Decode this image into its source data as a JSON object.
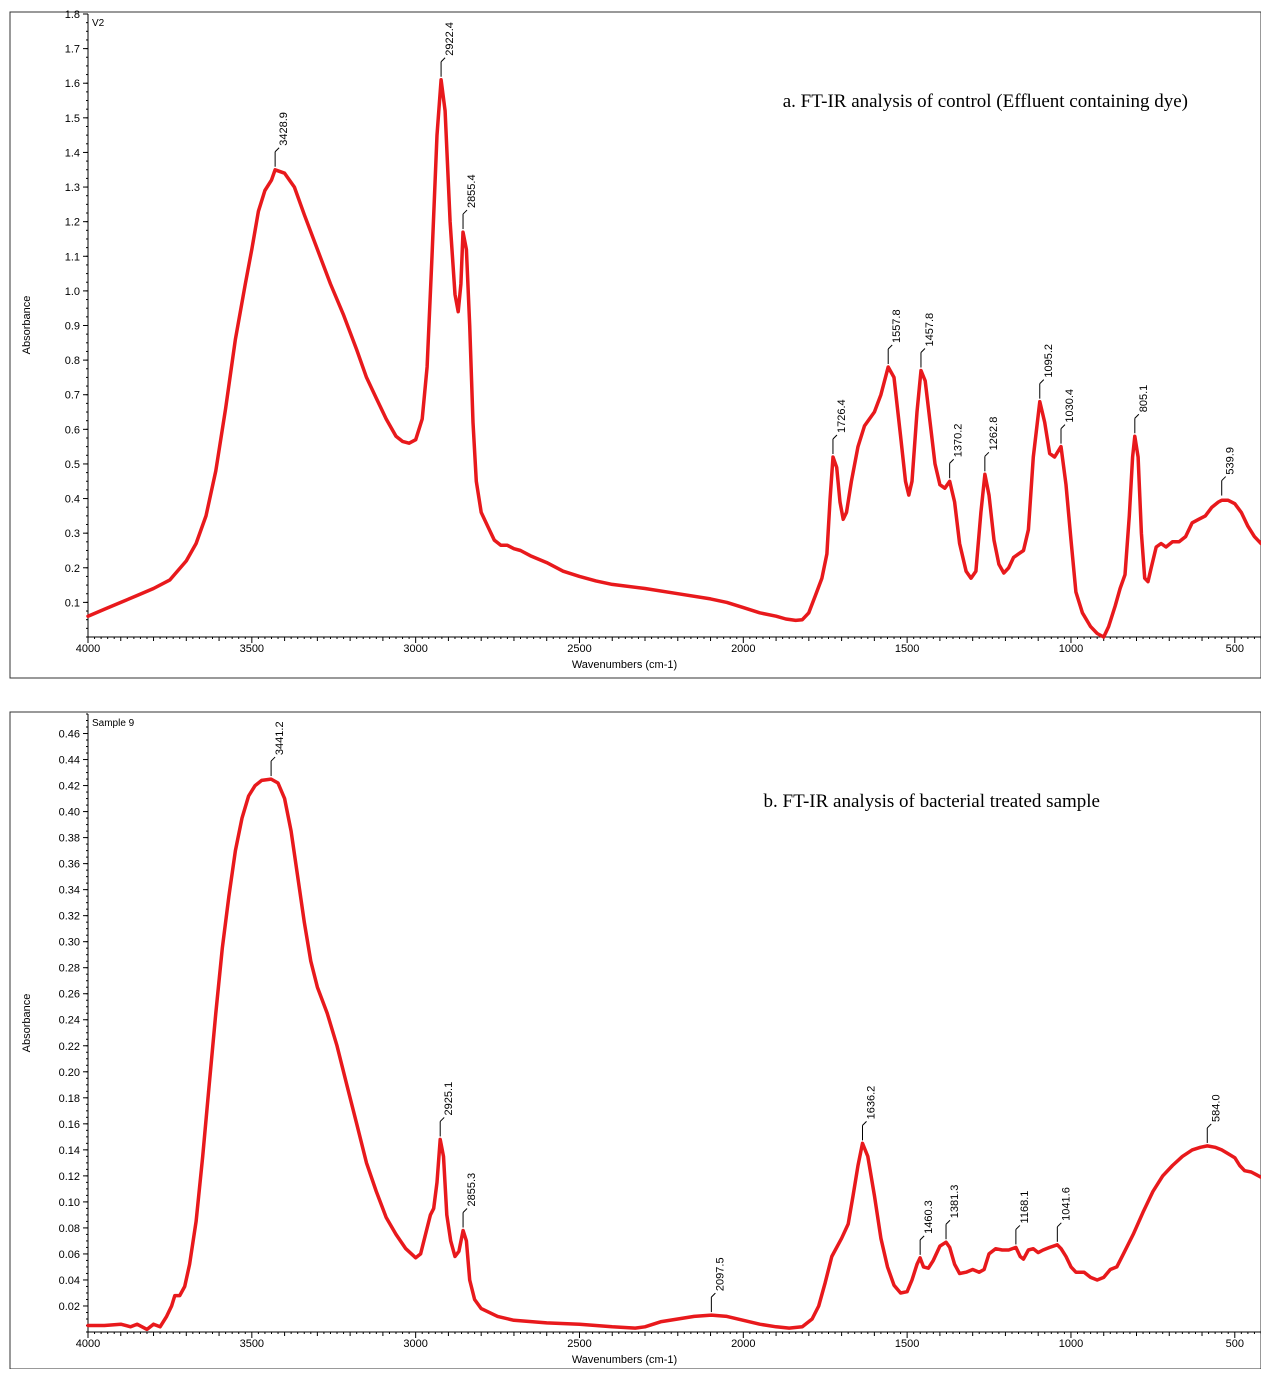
{
  "chart_data": [
    {
      "type": "line",
      "title": "a. FT-IR  analysis of control  (Effluent containing dye)",
      "sample_label": "V2",
      "xlabel": "Wavenumbers (cm-1)",
      "ylabel": "Absorbance",
      "xlim": [
        4000,
        420
      ],
      "ylim": [
        0.0,
        1.8
      ],
      "x_ticks": [
        "4000",
        "3500",
        "3000",
        "2500",
        "2000",
        "1500",
        "1000",
        "500"
      ],
      "y_ticks": [
        "0.1",
        "0.2",
        "0.3",
        "0.4",
        "0.5",
        "0.6",
        "0.7",
        "0.8",
        "0.9",
        "1.0",
        "1.1",
        "1.2",
        "1.3",
        "1.4",
        "1.5",
        "1.6",
        "1.7",
        "1.8"
      ],
      "series_color": "#e8191c",
      "peaks": [
        {
          "label": "3428.9",
          "x": 3428.9,
          "y": 1.35
        },
        {
          "label": "2922.4",
          "x": 2922.4,
          "y": 1.61
        },
        {
          "label": "2855.4",
          "x": 2855.4,
          "y": 1.17
        },
        {
          "label": "1726.4",
          "x": 1726.4,
          "y": 0.52
        },
        {
          "label": "1557.8",
          "x": 1557.8,
          "y": 0.78
        },
        {
          "label": "1457.8",
          "x": 1457.8,
          "y": 0.77
        },
        {
          "label": "1370.2",
          "x": 1370.2,
          "y": 0.45
        },
        {
          "label": "1262.8",
          "x": 1262.8,
          "y": 0.47
        },
        {
          "label": "1095.2",
          "x": 1095.2,
          "y": 0.68
        },
        {
          "label": "1030.4",
          "x": 1030.4,
          "y": 0.55
        },
        {
          "label": "805.1",
          "x": 805.1,
          "y": 0.58
        },
        {
          "label": "539.9",
          "x": 539.9,
          "y": 0.4
        }
      ],
      "points": [
        [
          4000,
          0.06
        ],
        [
          3950,
          0.08
        ],
        [
          3900,
          0.1
        ],
        [
          3850,
          0.12
        ],
        [
          3800,
          0.14
        ],
        [
          3750,
          0.165
        ],
        [
          3700,
          0.22
        ],
        [
          3670,
          0.27
        ],
        [
          3640,
          0.35
        ],
        [
          3610,
          0.48
        ],
        [
          3580,
          0.66
        ],
        [
          3550,
          0.86
        ],
        [
          3520,
          1.02
        ],
        [
          3500,
          1.12
        ],
        [
          3480,
          1.23
        ],
        [
          3460,
          1.29
        ],
        [
          3440,
          1.32
        ],
        [
          3428.9,
          1.35
        ],
        [
          3400,
          1.34
        ],
        [
          3370,
          1.3
        ],
        [
          3340,
          1.22
        ],
        [
          3300,
          1.12
        ],
        [
          3260,
          1.02
        ],
        [
          3220,
          0.93
        ],
        [
          3180,
          0.83
        ],
        [
          3150,
          0.75
        ],
        [
          3120,
          0.69
        ],
        [
          3090,
          0.63
        ],
        [
          3060,
          0.58
        ],
        [
          3040,
          0.565
        ],
        [
          3020,
          0.56
        ],
        [
          3000,
          0.57
        ],
        [
          2980,
          0.63
        ],
        [
          2965,
          0.78
        ],
        [
          2950,
          1.1
        ],
        [
          2935,
          1.45
        ],
        [
          2922.4,
          1.61
        ],
        [
          2910,
          1.52
        ],
        [
          2895,
          1.2
        ],
        [
          2880,
          0.99
        ],
        [
          2870,
          0.94
        ],
        [
          2862,
          1.02
        ],
        [
          2855.4,
          1.17
        ],
        [
          2845,
          1.12
        ],
        [
          2835,
          0.9
        ],
        [
          2825,
          0.62
        ],
        [
          2815,
          0.45
        ],
        [
          2800,
          0.36
        ],
        [
          2780,
          0.32
        ],
        [
          2760,
          0.28
        ],
        [
          2740,
          0.265
        ],
        [
          2720,
          0.265
        ],
        [
          2700,
          0.255
        ],
        [
          2680,
          0.25
        ],
        [
          2650,
          0.235
        ],
        [
          2600,
          0.215
        ],
        [
          2550,
          0.19
        ],
        [
          2500,
          0.175
        ],
        [
          2450,
          0.162
        ],
        [
          2400,
          0.152
        ],
        [
          2300,
          0.14
        ],
        [
          2200,
          0.125
        ],
        [
          2100,
          0.11
        ],
        [
          2050,
          0.1
        ],
        [
          2000,
          0.085
        ],
        [
          1950,
          0.07
        ],
        [
          1900,
          0.06
        ],
        [
          1870,
          0.052
        ],
        [
          1840,
          0.048
        ],
        [
          1820,
          0.05
        ],
        [
          1800,
          0.07
        ],
        [
          1780,
          0.12
        ],
        [
          1760,
          0.17
        ],
        [
          1745,
          0.24
        ],
        [
          1735,
          0.4
        ],
        [
          1726.4,
          0.52
        ],
        [
          1715,
          0.49
        ],
        [
          1705,
          0.39
        ],
        [
          1695,
          0.34
        ],
        [
          1685,
          0.36
        ],
        [
          1670,
          0.45
        ],
        [
          1650,
          0.55
        ],
        [
          1630,
          0.61
        ],
        [
          1600,
          0.65
        ],
        [
          1580,
          0.7
        ],
        [
          1557.8,
          0.78
        ],
        [
          1540,
          0.75
        ],
        [
          1520,
          0.58
        ],
        [
          1505,
          0.45
        ],
        [
          1495,
          0.41
        ],
        [
          1485,
          0.45
        ],
        [
          1470,
          0.65
        ],
        [
          1457.8,
          0.77
        ],
        [
          1445,
          0.74
        ],
        [
          1430,
          0.62
        ],
        [
          1415,
          0.5
        ],
        [
          1400,
          0.44
        ],
        [
          1385,
          0.43
        ],
        [
          1370.2,
          0.45
        ],
        [
          1355,
          0.39
        ],
        [
          1340,
          0.27
        ],
        [
          1320,
          0.19
        ],
        [
          1305,
          0.17
        ],
        [
          1290,
          0.19
        ],
        [
          1275,
          0.36
        ],
        [
          1262.8,
          0.47
        ],
        [
          1250,
          0.41
        ],
        [
          1235,
          0.28
        ],
        [
          1220,
          0.21
        ],
        [
          1205,
          0.185
        ],
        [
          1190,
          0.2
        ],
        [
          1175,
          0.23
        ],
        [
          1160,
          0.24
        ],
        [
          1145,
          0.25
        ],
        [
          1130,
          0.31
        ],
        [
          1115,
          0.52
        ],
        [
          1095.2,
          0.68
        ],
        [
          1080,
          0.62
        ],
        [
          1065,
          0.53
        ],
        [
          1050,
          0.52
        ],
        [
          1030.4,
          0.55
        ],
        [
          1015,
          0.44
        ],
        [
          1000,
          0.28
        ],
        [
          985,
          0.13
        ],
        [
          965,
          0.07
        ],
        [
          940,
          0.03
        ],
        [
          920,
          0.01
        ],
        [
          900,
          0.0
        ],
        [
          885,
          0.03
        ],
        [
          865,
          0.09
        ],
        [
          850,
          0.14
        ],
        [
          835,
          0.18
        ],
        [
          822,
          0.35
        ],
        [
          812,
          0.52
        ],
        [
          805.1,
          0.58
        ],
        [
          795,
          0.52
        ],
        [
          785,
          0.3
        ],
        [
          775,
          0.17
        ],
        [
          765,
          0.16
        ],
        [
          755,
          0.2
        ],
        [
          740,
          0.26
        ],
        [
          725,
          0.27
        ],
        [
          710,
          0.26
        ],
        [
          690,
          0.275
        ],
        [
          670,
          0.275
        ],
        [
          650,
          0.29
        ],
        [
          630,
          0.33
        ],
        [
          610,
          0.34
        ],
        [
          590,
          0.35
        ],
        [
          570,
          0.375
        ],
        [
          550,
          0.39
        ],
        [
          539.9,
          0.395
        ],
        [
          520,
          0.395
        ],
        [
          500,
          0.385
        ],
        [
          480,
          0.36
        ],
        [
          460,
          0.32
        ],
        [
          440,
          0.29
        ],
        [
          420,
          0.27
        ]
      ]
    },
    {
      "type": "line",
      "title": "b. FT-IR analysis of bacterial treated sample",
      "sample_label": "Sample 9",
      "xlabel": "Wavenumbers (cm-1)",
      "ylabel": "Absorbance",
      "xlim": [
        4000,
        420
      ],
      "ylim": [
        0.0,
        0.475
      ],
      "x_ticks": [
        "4000",
        "3500",
        "3000",
        "2500",
        "2000",
        "1500",
        "1000",
        "500"
      ],
      "y_ticks": [
        "0.02",
        "0.04",
        "0.06",
        "0.08",
        "0.10",
        "0.12",
        "0.14",
        "0.16",
        "0.18",
        "0.20",
        "0.22",
        "0.24",
        "0.26",
        "0.28",
        "0.30",
        "0.32",
        "0.34",
        "0.36",
        "0.38",
        "0.40",
        "0.42",
        "0.44",
        "0.46"
      ],
      "series_color": "#e8191c",
      "peaks": [
        {
          "label": "3441.2",
          "x": 3441.2,
          "y": 0.425
        },
        {
          "label": "2925.1",
          "x": 2925.1,
          "y": 0.148
        },
        {
          "label": "2855.3",
          "x": 2855.3,
          "y": 0.078
        },
        {
          "label": "2097.5",
          "x": 2097.5,
          "y": 0.013
        },
        {
          "label": "1636.2",
          "x": 1636.2,
          "y": 0.145
        },
        {
          "label": "1460.3",
          "x": 1460.3,
          "y": 0.057
        },
        {
          "label": "1381.3",
          "x": 1381.3,
          "y": 0.069
        },
        {
          "label": "1168.1",
          "x": 1168.1,
          "y": 0.065
        },
        {
          "label": "1041.6",
          "x": 1041.6,
          "y": 0.067
        },
        {
          "label": "584.0",
          "x": 584.0,
          "y": 0.143
        }
      ],
      "points": [
        [
          4000,
          0.005
        ],
        [
          3950,
          0.005
        ],
        [
          3900,
          0.006
        ],
        [
          3870,
          0.004
        ],
        [
          3850,
          0.006
        ],
        [
          3820,
          0.002
        ],
        [
          3800,
          0.006
        ],
        [
          3780,
          0.004
        ],
        [
          3760,
          0.012
        ],
        [
          3745,
          0.02
        ],
        [
          3735,
          0.028
        ],
        [
          3720,
          0.028
        ],
        [
          3705,
          0.035
        ],
        [
          3690,
          0.052
        ],
        [
          3670,
          0.085
        ],
        [
          3650,
          0.135
        ],
        [
          3630,
          0.19
        ],
        [
          3610,
          0.245
        ],
        [
          3590,
          0.295
        ],
        [
          3570,
          0.335
        ],
        [
          3550,
          0.37
        ],
        [
          3530,
          0.395
        ],
        [
          3510,
          0.412
        ],
        [
          3490,
          0.42
        ],
        [
          3470,
          0.424
        ],
        [
          3441.2,
          0.425
        ],
        [
          3420,
          0.422
        ],
        [
          3400,
          0.41
        ],
        [
          3380,
          0.385
        ],
        [
          3360,
          0.35
        ],
        [
          3340,
          0.315
        ],
        [
          3320,
          0.285
        ],
        [
          3300,
          0.265
        ],
        [
          3270,
          0.245
        ],
        [
          3240,
          0.22
        ],
        [
          3210,
          0.19
        ],
        [
          3180,
          0.16
        ],
        [
          3150,
          0.13
        ],
        [
          3120,
          0.108
        ],
        [
          3090,
          0.088
        ],
        [
          3060,
          0.075
        ],
        [
          3030,
          0.064
        ],
        [
          3000,
          0.057
        ],
        [
          2985,
          0.06
        ],
        [
          2970,
          0.075
        ],
        [
          2955,
          0.09
        ],
        [
          2945,
          0.095
        ],
        [
          2935,
          0.115
        ],
        [
          2925.1,
          0.148
        ],
        [
          2915,
          0.135
        ],
        [
          2905,
          0.09
        ],
        [
          2893,
          0.07
        ],
        [
          2880,
          0.058
        ],
        [
          2868,
          0.062
        ],
        [
          2855.3,
          0.078
        ],
        [
          2845,
          0.07
        ],
        [
          2835,
          0.04
        ],
        [
          2820,
          0.025
        ],
        [
          2800,
          0.018
        ],
        [
          2750,
          0.012
        ],
        [
          2700,
          0.009
        ],
        [
          2600,
          0.007
        ],
        [
          2500,
          0.006
        ],
        [
          2450,
          0.005
        ],
        [
          2400,
          0.004
        ],
        [
          2330,
          0.003
        ],
        [
          2300,
          0.004
        ],
        [
          2250,
          0.008
        ],
        [
          2200,
          0.01
        ],
        [
          2150,
          0.012
        ],
        [
          2097.5,
          0.013
        ],
        [
          2050,
          0.012
        ],
        [
          2000,
          0.009
        ],
        [
          1950,
          0.006
        ],
        [
          1900,
          0.004
        ],
        [
          1860,
          0.003
        ],
        [
          1820,
          0.004
        ],
        [
          1790,
          0.01
        ],
        [
          1770,
          0.02
        ],
        [
          1750,
          0.038
        ],
        [
          1730,
          0.058
        ],
        [
          1700,
          0.072
        ],
        [
          1680,
          0.083
        ],
        [
          1665,
          0.105
        ],
        [
          1650,
          0.128
        ],
        [
          1636.2,
          0.145
        ],
        [
          1620,
          0.135
        ],
        [
          1600,
          0.105
        ],
        [
          1580,
          0.072
        ],
        [
          1560,
          0.05
        ],
        [
          1540,
          0.036
        ],
        [
          1520,
          0.03
        ],
        [
          1500,
          0.031
        ],
        [
          1485,
          0.04
        ],
        [
          1470,
          0.052
        ],
        [
          1460.3,
          0.057
        ],
        [
          1450,
          0.05
        ],
        [
          1435,
          0.049
        ],
        [
          1420,
          0.055
        ],
        [
          1400,
          0.066
        ],
        [
          1381.3,
          0.069
        ],
        [
          1370,
          0.065
        ],
        [
          1355,
          0.052
        ],
        [
          1340,
          0.045
        ],
        [
          1320,
          0.046
        ],
        [
          1300,
          0.048
        ],
        [
          1280,
          0.046
        ],
        [
          1265,
          0.048
        ],
        [
          1250,
          0.06
        ],
        [
          1230,
          0.064
        ],
        [
          1210,
          0.063
        ],
        [
          1190,
          0.063
        ],
        [
          1168.1,
          0.065
        ],
        [
          1155,
          0.058
        ],
        [
          1145,
          0.056
        ],
        [
          1130,
          0.063
        ],
        [
          1115,
          0.064
        ],
        [
          1100,
          0.061
        ],
        [
          1085,
          0.063
        ],
        [
          1065,
          0.065
        ],
        [
          1041.6,
          0.067
        ],
        [
          1030,
          0.064
        ],
        [
          1015,
          0.058
        ],
        [
          1000,
          0.05
        ],
        [
          985,
          0.046
        ],
        [
          960,
          0.046
        ],
        [
          940,
          0.042
        ],
        [
          920,
          0.04
        ],
        [
          900,
          0.042
        ],
        [
          880,
          0.048
        ],
        [
          860,
          0.05
        ],
        [
          840,
          0.06
        ],
        [
          810,
          0.075
        ],
        [
          780,
          0.092
        ],
        [
          750,
          0.108
        ],
        [
          720,
          0.12
        ],
        [
          690,
          0.128
        ],
        [
          660,
          0.135
        ],
        [
          630,
          0.14
        ],
        [
          605,
          0.142
        ],
        [
          584.0,
          0.143
        ],
        [
          560,
          0.142
        ],
        [
          540,
          0.14
        ],
        [
          520,
          0.137
        ],
        [
          500,
          0.134
        ],
        [
          485,
          0.128
        ],
        [
          470,
          0.124
        ],
        [
          450,
          0.123
        ],
        [
          435,
          0.121
        ],
        [
          420,
          0.119
        ]
      ]
    }
  ]
}
